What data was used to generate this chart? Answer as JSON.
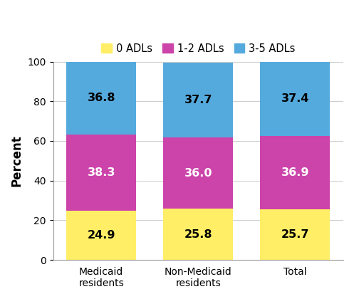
{
  "categories": [
    "Medicaid\nresidents",
    "Non-Medicaid\nresidents",
    "Total"
  ],
  "adl_0": [
    24.9,
    25.8,
    25.7
  ],
  "adl_12": [
    38.3,
    36.0,
    36.9
  ],
  "adl_35": [
    36.8,
    37.7,
    37.4
  ],
  "colors": {
    "adl_0": "#FFEE66",
    "adl_12": "#CC44AA",
    "adl_35": "#55AADD"
  },
  "legend_labels": [
    "0 ADLs",
    "1-2 ADLs",
    "3-5 ADLs"
  ],
  "ylabel": "Percent",
  "ylim": [
    0,
    100
  ],
  "yticks": [
    0,
    20,
    40,
    60,
    80,
    100
  ],
  "bar_width": 0.72,
  "label_color_0": "#000000",
  "label_color_12": "#ffffff",
  "label_color_35": "#000000",
  "label_fontsize": 11.5,
  "legend_fontsize": 10.5,
  "ylabel_fontsize": 12,
  "tick_fontsize": 10,
  "background_color": "#ffffff"
}
